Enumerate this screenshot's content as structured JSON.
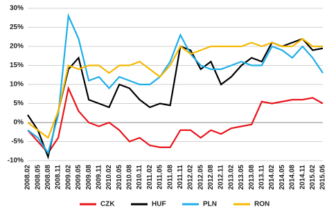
{
  "chart_data": {
    "type": "line",
    "categories": [
      "2008.02",
      "2008.05",
      "2008.08",
      "2008.11",
      "2009.02",
      "2009.05",
      "2009.08",
      "2009.11",
      "2010.02",
      "2010.05",
      "2010.08",
      "2010.11",
      "2011.02",
      "2011.05",
      "2011.08",
      "2011.11",
      "2012.02",
      "2012.05",
      "2012.08",
      "2012.11",
      "2013.02",
      "2013.05",
      "2013.08",
      "2013.11",
      "2014.02",
      "2014.05",
      "2014.08",
      "2014.11",
      "2015.02",
      "2015.05"
    ],
    "series": [
      {
        "name": "CZK",
        "color": "#e8141b",
        "values": [
          -2,
          -5,
          -8,
          -4,
          9,
          3,
          0,
          -1,
          0,
          -2,
          -5,
          -4,
          -6,
          -6.5,
          -6.5,
          -2,
          -2,
          -4,
          -2,
          -3,
          -1.5,
          -1,
          -0.5,
          5.5,
          5,
          5.5,
          6,
          6,
          6.5,
          5
        ]
      },
      {
        "name": "HUF",
        "color": "#000000",
        "values": [
          2,
          -2,
          -9,
          3,
          14,
          17,
          6,
          5,
          4,
          10,
          9,
          6,
          4,
          5,
          4.5,
          20,
          19,
          14,
          16,
          10,
          12,
          15,
          17,
          16,
          21,
          20,
          21,
          22,
          19,
          19.5
        ]
      },
      {
        "name": "PLN",
        "color": "#1eaee8",
        "values": [
          -2,
          -4,
          -8,
          2,
          28,
          22,
          11,
          12,
          9,
          12,
          11,
          10,
          10,
          12,
          16,
          23,
          18,
          15,
          14,
          14,
          15,
          16,
          15,
          15,
          20,
          19,
          17,
          20,
          17,
          13
        ]
      },
      {
        "name": "RON",
        "color": "#f5b800",
        "values": [
          0,
          -2,
          -4,
          3,
          15,
          14,
          15,
          15,
          13,
          15,
          15,
          16,
          14,
          12,
          15,
          20,
          18,
          19,
          20,
          20,
          20,
          20,
          21,
          20,
          21,
          20,
          20,
          22,
          20,
          20
        ]
      }
    ],
    "ylim": [
      -10,
      30
    ],
    "yticks": [
      {
        "value": -10,
        "label": "-10%"
      },
      {
        "value": -5,
        "label": "-5%"
      },
      {
        "value": 0,
        "label": "0%"
      },
      {
        "value": 5,
        "label": "5%"
      },
      {
        "value": 10,
        "label": "10%"
      },
      {
        "value": 15,
        "label": "15%"
      },
      {
        "value": 20,
        "label": "20%"
      },
      {
        "value": 25,
        "label": "25%"
      },
      {
        "value": 30,
        "label": "30%"
      }
    ],
    "grid": true,
    "legend": "bottom"
  }
}
